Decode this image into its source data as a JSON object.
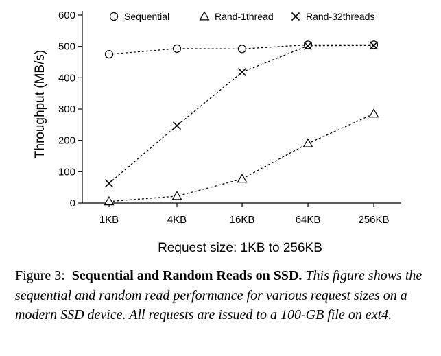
{
  "chart_data": {
    "type": "line",
    "categories": [
      "1KB",
      "4KB",
      "16KB",
      "64KB",
      "256KB"
    ],
    "xlabel": "Request size: 1KB to 256KB",
    "ylabel": "Throughput (MB/s)",
    "ylim": [
      0,
      600
    ],
    "yticks": [
      0,
      100,
      200,
      300,
      400,
      500,
      600
    ],
    "grid": false,
    "legend_position": "top",
    "series": [
      {
        "name": "Sequential",
        "marker": "circle",
        "values": [
          475,
          493,
          492,
          505,
          505
        ]
      },
      {
        "name": "Rand-1thread",
        "marker": "triangle",
        "values": [
          5,
          22,
          77,
          190,
          285
        ]
      },
      {
        "name": "Rand-32threads",
        "marker": "cross",
        "values": [
          63,
          247,
          418,
          502,
          503
        ]
      }
    ]
  },
  "caption": {
    "number": "Figure 3:",
    "title": "Sequential and Random Reads on SSD.",
    "body": "This figure shows the sequential and random read performance for various request sizes on a modern SSD device. All requests are issued to a 100-GB file on ext4."
  }
}
